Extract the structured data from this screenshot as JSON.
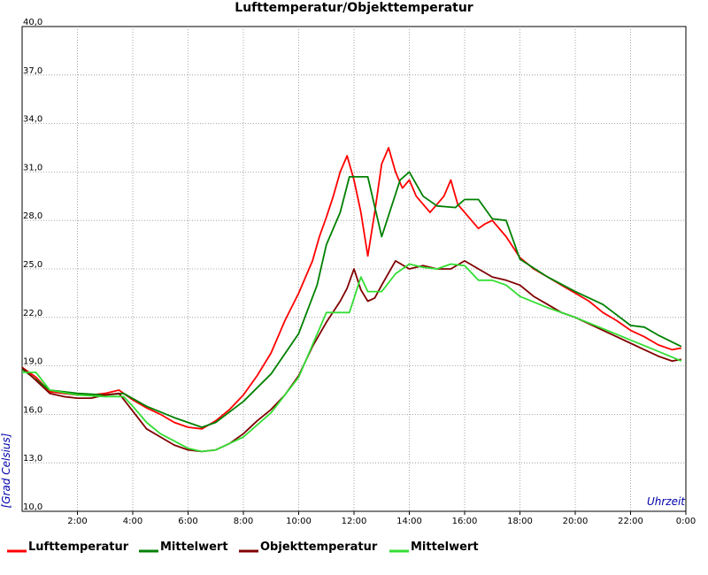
{
  "chart_data": {
    "type": "line",
    "title": "Lufttemperatur/Objekttemperatur",
    "xlabel": "Uhrzeit",
    "ylabel": "[Grad Celsius]",
    "ylim": [
      10,
      40
    ],
    "xlim": [
      0,
      24
    ],
    "y_tick_labels": [
      "40,0",
      "37,0",
      "34,0",
      "31,0",
      "28,0",
      "25,0",
      "22,0",
      "19,0",
      "16,0",
      "13,0",
      "10,0"
    ],
    "x_tick_labels": [
      "2:00",
      "4:00",
      "6:00",
      "8:00",
      "10:00",
      "12:00",
      "14:00",
      "16:00",
      "18:00",
      "20:00",
      "22:00",
      "0:00"
    ],
    "grid": true,
    "legend_position": "bottom",
    "series": [
      {
        "name": "Lufttemperatur",
        "color": "#ff0000",
        "x": [
          "0:00",
          "0:30",
          "1:00",
          "1:30",
          "2:00",
          "2:30",
          "3:00",
          "3:30",
          "4:00",
          "4:30",
          "5:00",
          "5:30",
          "6:00",
          "6:30",
          "7:00",
          "7:30",
          "8:00",
          "8:30",
          "9:00",
          "9:30",
          "10:00",
          "10:30",
          "10:45",
          "11:00",
          "11:15",
          "11:30",
          "11:45",
          "12:00",
          "12:15",
          "12:30",
          "12:45",
          "13:00",
          "13:15",
          "13:30",
          "13:45",
          "14:00",
          "14:15",
          "14:30",
          "14:45",
          "15:00",
          "15:15",
          "15:30",
          "15:45",
          "16:00",
          "16:15",
          "16:30",
          "16:45",
          "17:00",
          "17:30",
          "18:00",
          "18:30",
          "19:00",
          "19:30",
          "20:00",
          "20:30",
          "21:00",
          "21:30",
          "22:00",
          "22:30",
          "23:00",
          "23:30",
          "23:50"
        ],
        "values": [
          18.9,
          18.3,
          17.4,
          17.3,
          17.2,
          17.2,
          17.3,
          17.5,
          16.9,
          16.4,
          16.0,
          15.5,
          15.2,
          15.1,
          15.6,
          16.3,
          17.2,
          18.4,
          19.8,
          21.8,
          23.5,
          25.5,
          27.0,
          28.2,
          29.5,
          31.0,
          32.0,
          30.5,
          28.5,
          25.8,
          28.5,
          31.5,
          32.5,
          31.0,
          30.0,
          30.5,
          29.5,
          29.0,
          28.5,
          29.0,
          29.5,
          30.5,
          29.0,
          28.5,
          28.0,
          27.5,
          27.8,
          28.0,
          27.0,
          25.7,
          25.0,
          24.5,
          24.0,
          23.5,
          23.0,
          22.3,
          21.8,
          21.2,
          20.8,
          20.3,
          20.0,
          20.1
        ]
      },
      {
        "name": "Mittelwert",
        "color": "#008000",
        "x": [
          "0:00",
          "1:00",
          "2:00",
          "3:00",
          "3:40",
          "4:30",
          "5:30",
          "6:30",
          "7:00",
          "8:00",
          "9:00",
          "10:00",
          "10:40",
          "11:00",
          "11:30",
          "11:50",
          "12:30",
          "13:00",
          "13:40",
          "14:00",
          "14:30",
          "15:00",
          "15:40",
          "16:00",
          "16:30",
          "17:00",
          "17:30",
          "18:00",
          "19:00",
          "20:00",
          "21:00",
          "22:00",
          "22:30",
          "23:00",
          "23:50"
        ],
        "values": [
          18.8,
          17.5,
          17.3,
          17.2,
          17.3,
          16.5,
          15.8,
          15.2,
          15.5,
          16.8,
          18.5,
          21.0,
          24.0,
          26.5,
          28.5,
          30.7,
          30.7,
          27.0,
          30.5,
          31.0,
          29.5,
          28.9,
          28.8,
          29.3,
          29.3,
          28.1,
          28.0,
          25.6,
          24.5,
          23.6,
          22.8,
          21.5,
          21.4,
          20.9,
          20.2
        ]
      },
      {
        "name": "Objekttemperatur",
        "color": "#800000",
        "x": [
          "0:00",
          "0:30",
          "1:00",
          "1:30",
          "2:00",
          "2:30",
          "3:00",
          "3:30",
          "4:00",
          "4:30",
          "5:00",
          "5:30",
          "6:00",
          "6:30",
          "7:00",
          "7:30",
          "8:00",
          "8:30",
          "9:00",
          "9:30",
          "10:00",
          "10:30",
          "11:00",
          "11:30",
          "11:45",
          "12:00",
          "12:15",
          "12:30",
          "12:45",
          "13:00",
          "13:30",
          "14:00",
          "14:30",
          "15:00",
          "15:30",
          "16:00",
          "16:30",
          "17:00",
          "17:30",
          "18:00",
          "18:30",
          "19:00",
          "19:30",
          "20:00",
          "20:30",
          "21:00",
          "21:30",
          "22:00",
          "22:30",
          "23:00",
          "23:30",
          "23:50"
        ],
        "values": [
          18.9,
          18.1,
          17.3,
          17.1,
          17.0,
          17.0,
          17.2,
          17.3,
          16.2,
          15.1,
          14.6,
          14.1,
          13.8,
          13.7,
          13.8,
          14.2,
          14.8,
          15.6,
          16.3,
          17.2,
          18.4,
          20.2,
          21.7,
          23.0,
          23.8,
          25.0,
          23.7,
          23.0,
          23.2,
          24.0,
          25.5,
          25.0,
          25.2,
          25.0,
          25.0,
          25.5,
          25.0,
          24.5,
          24.3,
          24.0,
          23.3,
          22.8,
          22.3,
          22.0,
          21.6,
          21.2,
          20.8,
          20.4,
          20.0,
          19.6,
          19.3,
          19.4
        ]
      },
      {
        "name": "Mittelwert",
        "color": "#33dd33",
        "x": [
          "0:00",
          "0:30",
          "1:00",
          "2:00",
          "3:00",
          "3:40",
          "4:00",
          "4:30",
          "5:00",
          "6:00",
          "6:30",
          "7:00",
          "8:00",
          "9:00",
          "10:00",
          "10:30",
          "11:00",
          "11:20",
          "11:50",
          "12:15",
          "12:30",
          "13:00",
          "13:30",
          "14:00",
          "14:30",
          "15:00",
          "15:30",
          "16:00",
          "16:30",
          "17:00",
          "17:30",
          "18:00",
          "19:00",
          "20:00",
          "21:00",
          "22:00",
          "23:00",
          "23:50"
        ],
        "values": [
          18.6,
          18.6,
          17.5,
          17.2,
          17.1,
          17.1,
          16.5,
          15.5,
          14.8,
          13.9,
          13.7,
          13.8,
          14.6,
          16.1,
          18.3,
          20.3,
          22.3,
          22.3,
          22.3,
          24.5,
          23.6,
          23.6,
          24.7,
          25.3,
          25.1,
          25.0,
          25.3,
          25.2,
          24.3,
          24.3,
          24.0,
          23.3,
          22.6,
          22.0,
          21.3,
          20.6,
          19.9,
          19.3
        ]
      }
    ]
  }
}
